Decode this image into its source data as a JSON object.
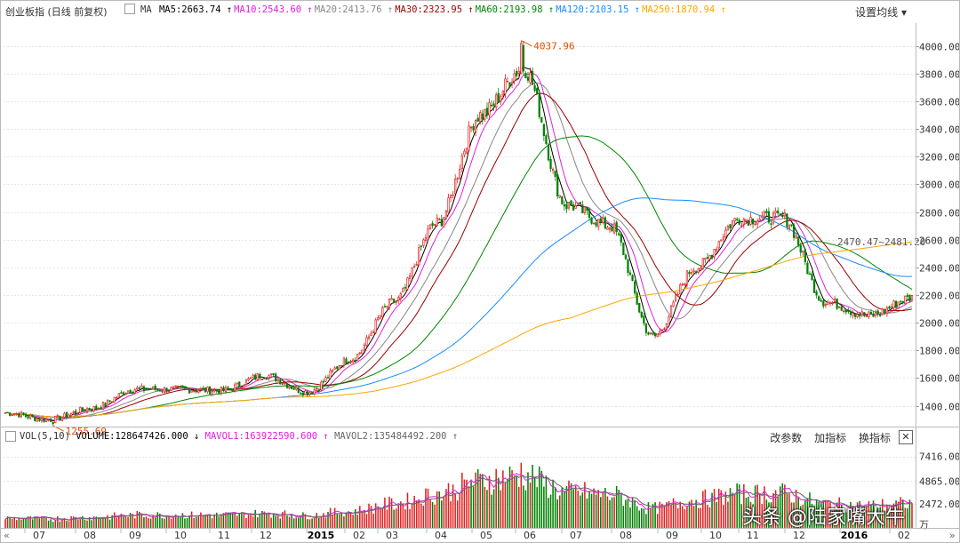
{
  "header": {
    "title": "创业板指 (日线 前复权)",
    "ma_label": "MA",
    "ma_items": [
      {
        "label": "MA5:2663.74",
        "color": "#000000",
        "arrow": "↑"
      },
      {
        "label": "MA10:2543.60",
        "color": "#e020e0",
        "arrow": "↑"
      },
      {
        "label": "MA20:2413.76",
        "color": "#888888",
        "arrow": "↑"
      },
      {
        "label": "MA30:2323.95",
        "color": "#990000",
        "arrow": "↑"
      },
      {
        "label": "MA60:2193.98",
        "color": "#008800",
        "arrow": "↑"
      },
      {
        "label": "MA120:2103.15",
        "color": "#1a8cff",
        "arrow": "↑"
      },
      {
        "label": "MA250:1870.94",
        "color": "#ffa500",
        "arrow": "↑"
      }
    ],
    "settings_label": "设置均线"
  },
  "volume_header": {
    "label": "VOL(5,10)",
    "volume_text": "VOLUME:128647426.000",
    "volume_arrow": "↓",
    "mavol1_text": "MAVOL1:163922590.600",
    "mavol1_arrow": "↑",
    "mavol2_text": "MAVOL2:135484492.200",
    "mavol2_arrow": "↑",
    "buttons": [
      "改参数",
      "加指标",
      "换指标"
    ],
    "close_label": "✕"
  },
  "annotations": {
    "high": "4037.96",
    "low": "1255.69",
    "crossover": "2470.47~2481.20"
  },
  "watermark": "头条 @陆家嘴大牛",
  "chart_data": {
    "type": "candlestick",
    "title": "创业板指 (日线 前复权)",
    "price_axis": {
      "ticks": [
        1400,
        1600,
        1800,
        2000,
        2200,
        2400,
        2600,
        2800,
        3000,
        3200,
        3400,
        3600,
        3800,
        4000
      ],
      "tick_labels": [
        "1400.00",
        "1600.00",
        "1800.00",
        "2000.00",
        "2200.00",
        "2400.00",
        "2600.00",
        "2800.00",
        "3000.00",
        "3200.00",
        "3400.00",
        "3600.00",
        "3800.00",
        "4000.00"
      ],
      "ylim": [
        1250,
        4100
      ]
    },
    "volume_axis": {
      "tick_labels": [
        "7416.00",
        "4865.00",
        "2472.00",
        "万"
      ],
      "ylim": [
        0,
        8500
      ]
    },
    "x_axis": {
      "labels": [
        "07",
        "08",
        "09",
        "10",
        "11",
        "12",
        "2015",
        "02",
        "03",
        "04",
        "05",
        "06",
        "07",
        "08",
        "09",
        "10",
        "11",
        "12",
        "2016",
        "02"
      ]
    },
    "close_series_monthly": {
      "months": [
        "2014-06",
        "2014-07",
        "2014-08",
        "2014-09",
        "2014-10",
        "2014-11",
        "2014-12",
        "2015-01",
        "2015-02",
        "2015-03",
        "2015-04",
        "2015-05",
        "2015-06",
        "2015-07",
        "2015-08",
        "2015-09",
        "2015-10",
        "2015-11",
        "2015-12",
        "2016-01",
        "2016-02",
        "2016-03"
      ],
      "close": [
        1350,
        1300,
        1380,
        1520,
        1520,
        1510,
        1620,
        1500,
        1740,
        2150,
        2720,
        3500,
        3840,
        2850,
        2700,
        1900,
        2400,
        2750,
        2760,
        2150,
        2050,
        2180
      ]
    },
    "high": 4037.96,
    "low": 1255.69,
    "crossover_range": [
      2470.47,
      2481.2
    ],
    "moving_averages": [
      {
        "name": "MA5",
        "value": 2663.74,
        "color": "#000000"
      },
      {
        "name": "MA10",
        "value": 2543.6,
        "color": "#e020e0"
      },
      {
        "name": "MA20",
        "value": 2413.76,
        "color": "#888888"
      },
      {
        "name": "MA30",
        "value": 2323.95,
        "color": "#990000"
      },
      {
        "name": "MA60",
        "value": 2193.98,
        "color": "#008800"
      },
      {
        "name": "MA120",
        "value": 2103.15,
        "color": "#1a8cff"
      },
      {
        "name": "MA250",
        "value": 1870.94,
        "color": "#ffa500"
      }
    ],
    "volume": {
      "VOLUME": 128647426.0,
      "MAVOL1": 163922590.6,
      "MAVOL2": 135484492.2
    },
    "colors": {
      "up": "#e02020",
      "down": "#008000",
      "grid": "#e6e6e6"
    }
  }
}
